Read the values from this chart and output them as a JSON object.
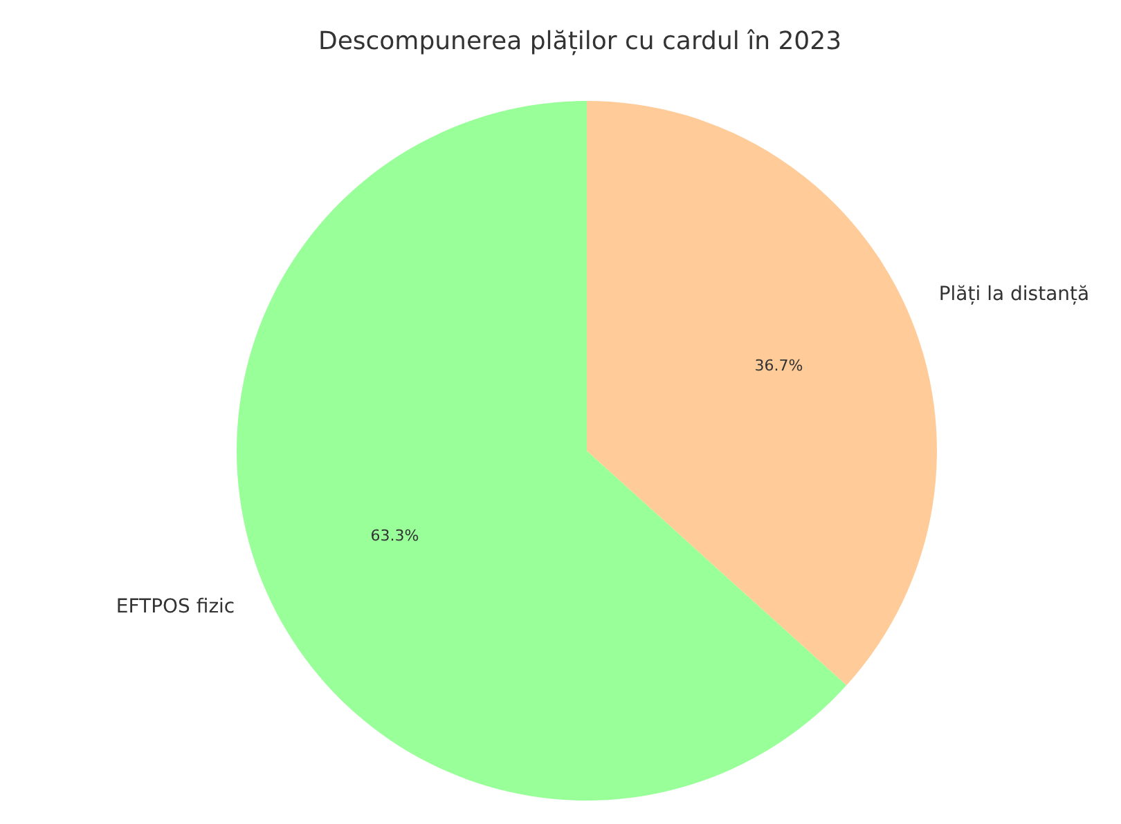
{
  "chart_data": {
    "type": "pie",
    "title": "Descompunerea plăților cu cardul în 2023",
    "categories": [
      "EFTPOS fizic",
      "Plăți la distanță"
    ],
    "values": [
      63.3,
      36.7
    ],
    "colors": [
      "#99ff99",
      "#ffcc99"
    ],
    "value_labels": [
      "63.3%",
      "36.7%"
    ]
  }
}
